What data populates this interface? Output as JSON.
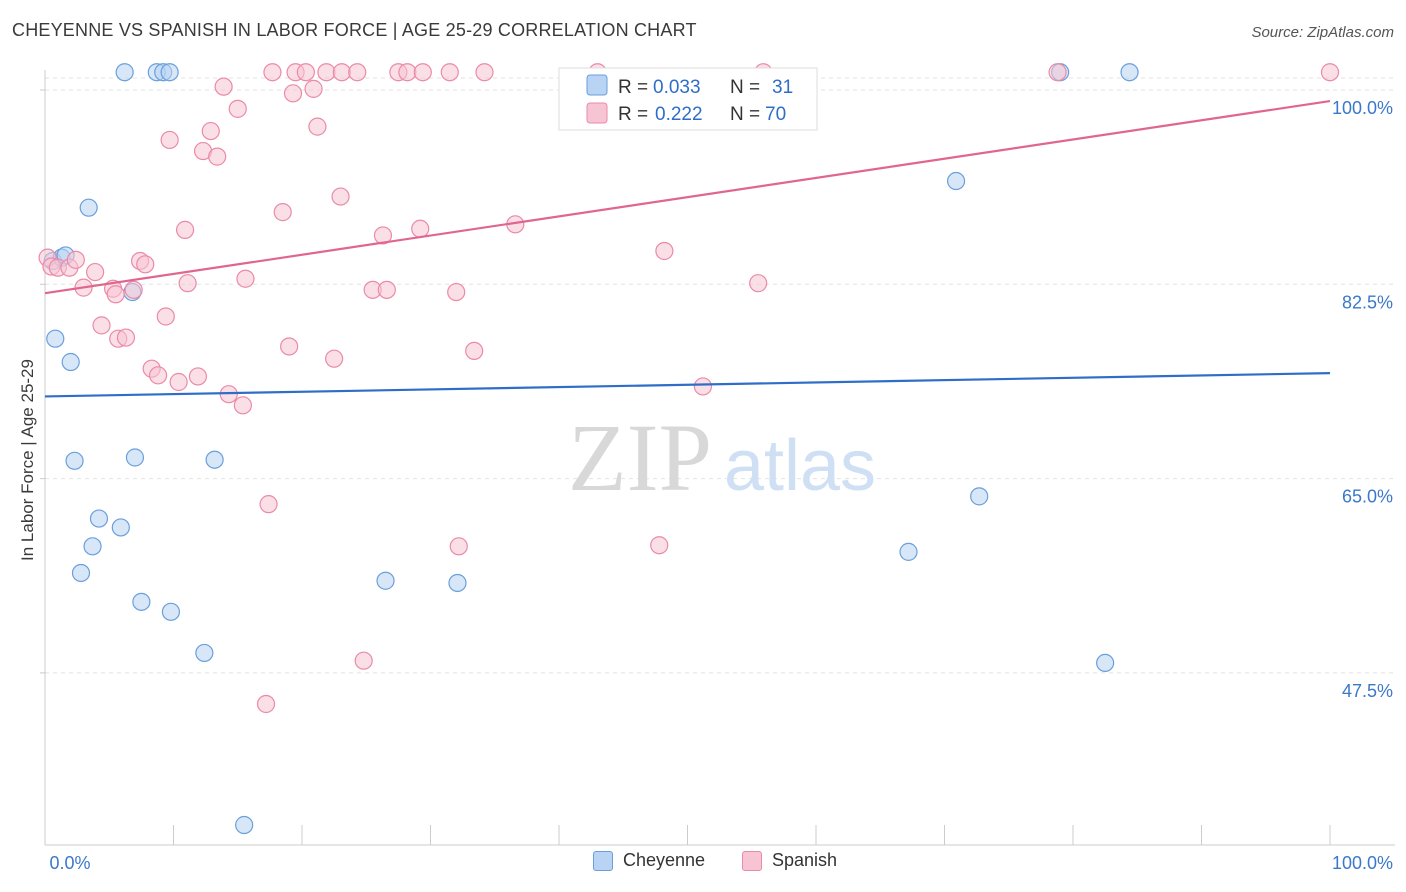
{
  "title": "CHEYENNE VS SPANISH IN LABOR FORCE | AGE 25-29 CORRELATION CHART",
  "source": "Source: ZipAtlas.com",
  "watermark": {
    "zip": "ZIP",
    "atlas": "atlas"
  },
  "chart_data": {
    "type": "scatter",
    "title": "CHEYENNE VS SPANISH IN LABOR FORCE | AGE 25-29 CORRELATION CHART",
    "xlabel": "",
    "ylabel": "In Labor Force | Age 25-29",
    "xlim": [
      0,
      100
    ],
    "ylim": [
      32,
      101.8
    ],
    "x_tick_labels": [
      "0.0%",
      "100.0%"
    ],
    "y_ticks": [
      {
        "value": 100,
        "label": "100.0%"
      },
      {
        "value": 82.5,
        "label": "82.5%"
      },
      {
        "value": 65,
        "label": "65.0%"
      },
      {
        "value": 47.5,
        "label": "47.5%"
      }
    ],
    "grid": true,
    "legend_position": "top-center",
    "series": [
      {
        "name": "Cheyenne",
        "color": "#6a9fdc",
        "fill": "#b8d3f3",
        "line_color": "#2f6ec8",
        "R": "0.033",
        "N": "31",
        "trend": {
          "x": [
            0,
            100
          ],
          "y": [
            72.4,
            74.5
          ]
        },
        "points": [
          [
            0.6,
            84.6
          ],
          [
            1.3,
            84.9
          ],
          [
            1.6,
            85.1
          ],
          [
            0.8,
            77.6
          ],
          [
            2.0,
            75.5
          ],
          [
            3.4,
            89.4
          ],
          [
            6.2,
            101.6
          ],
          [
            8.7,
            101.6
          ],
          [
            9.2,
            101.6
          ],
          [
            9.7,
            101.6
          ],
          [
            6.8,
            81.8
          ],
          [
            2.3,
            66.6
          ],
          [
            7.0,
            66.9
          ],
          [
            13.2,
            66.7
          ],
          [
            4.2,
            61.4
          ],
          [
            5.9,
            60.6
          ],
          [
            3.7,
            58.9
          ],
          [
            2.8,
            56.5
          ],
          [
            7.5,
            53.9
          ],
          [
            9.8,
            53.0
          ],
          [
            12.4,
            49.3
          ],
          [
            15.5,
            33.8
          ],
          [
            26.5,
            55.8
          ],
          [
            32.1,
            55.6
          ],
          [
            70.9,
            91.8
          ],
          [
            72.7,
            63.4
          ],
          [
            67.2,
            58.4
          ],
          [
            79.0,
            101.6
          ],
          [
            84.4,
            101.6
          ],
          [
            82.5,
            48.4
          ]
        ]
      },
      {
        "name": "Spanish",
        "color": "#eb8aa7",
        "fill": "#f7c4d4",
        "line_color": "#e0668f",
        "R": "0.222",
        "N": "70",
        "trend": {
          "x": [
            0,
            100
          ],
          "y": [
            81.7,
            99.0
          ]
        },
        "points": [
          [
            0.2,
            84.9
          ],
          [
            0.5,
            84.1
          ],
          [
            1.0,
            84.0
          ],
          [
            1.9,
            84.0
          ],
          [
            2.4,
            84.7
          ],
          [
            3.0,
            82.2
          ],
          [
            3.9,
            83.6
          ],
          [
            4.4,
            78.8
          ],
          [
            5.3,
            82.1
          ],
          [
            5.5,
            81.6
          ],
          [
            5.7,
            77.6
          ],
          [
            6.3,
            77.7
          ],
          [
            6.9,
            82.0
          ],
          [
            7.4,
            84.6
          ],
          [
            7.8,
            84.3
          ],
          [
            8.3,
            74.9
          ],
          [
            8.8,
            74.3
          ],
          [
            9.4,
            79.6
          ],
          [
            9.7,
            95.5
          ],
          [
            10.4,
            73.7
          ],
          [
            10.9,
            87.4
          ],
          [
            11.1,
            82.6
          ],
          [
            11.9,
            74.2
          ],
          [
            12.3,
            94.5
          ],
          [
            12.9,
            96.3
          ],
          [
            13.4,
            94.0
          ],
          [
            13.9,
            100.3
          ],
          [
            14.3,
            72.6
          ],
          [
            15.0,
            98.3
          ],
          [
            15.4,
            71.6
          ],
          [
            15.6,
            83.0
          ],
          [
            17.2,
            44.7
          ],
          [
            17.4,
            62.7
          ],
          [
            17.7,
            101.6
          ],
          [
            18.5,
            89.0
          ],
          [
            19.0,
            76.9
          ],
          [
            19.3,
            99.7
          ],
          [
            19.5,
            101.6
          ],
          [
            20.3,
            101.6
          ],
          [
            20.9,
            100.1
          ],
          [
            21.2,
            96.7
          ],
          [
            21.9,
            101.6
          ],
          [
            22.5,
            75.8
          ],
          [
            23.0,
            90.4
          ],
          [
            23.1,
            101.6
          ],
          [
            24.3,
            101.6
          ],
          [
            24.8,
            48.6
          ],
          [
            25.5,
            82.0
          ],
          [
            26.3,
            86.9
          ],
          [
            26.6,
            82.0
          ],
          [
            27.5,
            101.6
          ],
          [
            28.2,
            101.6
          ],
          [
            29.2,
            87.5
          ],
          [
            29.4,
            101.6
          ],
          [
            31.5,
            101.6
          ],
          [
            32.0,
            81.8
          ],
          [
            32.2,
            58.9
          ],
          [
            33.4,
            76.5
          ],
          [
            34.2,
            101.6
          ],
          [
            36.6,
            87.9
          ],
          [
            43.0,
            101.6
          ],
          [
            47.8,
            59.0
          ],
          [
            48.2,
            85.5
          ],
          [
            51.2,
            73.3
          ],
          [
            55.5,
            82.6
          ],
          [
            55.9,
            101.6
          ],
          [
            78.8,
            101.6
          ],
          [
            100.0,
            101.6
          ]
        ]
      }
    ]
  },
  "legend_top": {
    "rows": [
      {
        "r_label": "R =",
        "r_value": "0.033",
        "n_label": "N =",
        "n_value": "31"
      },
      {
        "r_label": "R =",
        "r_value": "0.222",
        "n_label": "N =",
        "n_value": "70"
      }
    ]
  },
  "legend_bottom": {
    "items": [
      "Cheyenne",
      "Spanish"
    ]
  }
}
